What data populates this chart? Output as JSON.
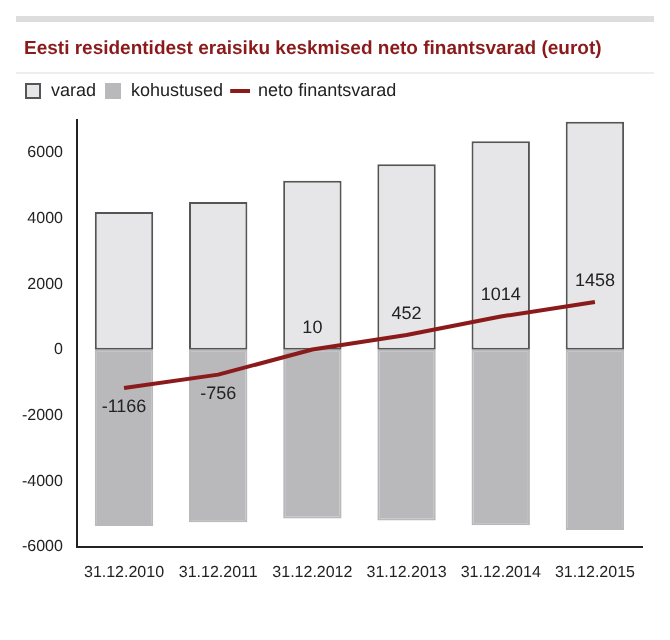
{
  "chart_data": {
    "type": "bar",
    "title": "Eesti residentidest eraisiku keskmised neto finantsvarad (eurot)",
    "categories": [
      "31.12.2010",
      "31.12.2011",
      "31.12.2012",
      "31.12.2013",
      "31.12.2014",
      "31.12.2015"
    ],
    "stacked": true,
    "series": [
      {
        "name": "varad",
        "color": "#e6e6e8",
        "values": [
          4200,
          4500,
          5150,
          5650,
          6350,
          6950
        ]
      },
      {
        "name": "kohustused",
        "color": "#b9b9bc",
        "values": [
          -5370,
          -5250,
          -5140,
          -5200,
          -5340,
          -5490
        ]
      },
      {
        "name": "neto finantsvarad",
        "type": "line",
        "color": "#8b1a1a",
        "values": [
          -1166,
          -756,
          10,
          452,
          1014,
          1458
        ],
        "value_labels": [
          "-1166",
          "-756",
          "10",
          "452",
          "1014",
          "1458"
        ]
      }
    ],
    "ylim": [
      -6000,
      7000
    ],
    "yticks": [
      -6000,
      -4000,
      -2000,
      0,
      2000,
      4000,
      6000
    ],
    "grid": false,
    "legend": "top left",
    "marker": "none"
  }
}
